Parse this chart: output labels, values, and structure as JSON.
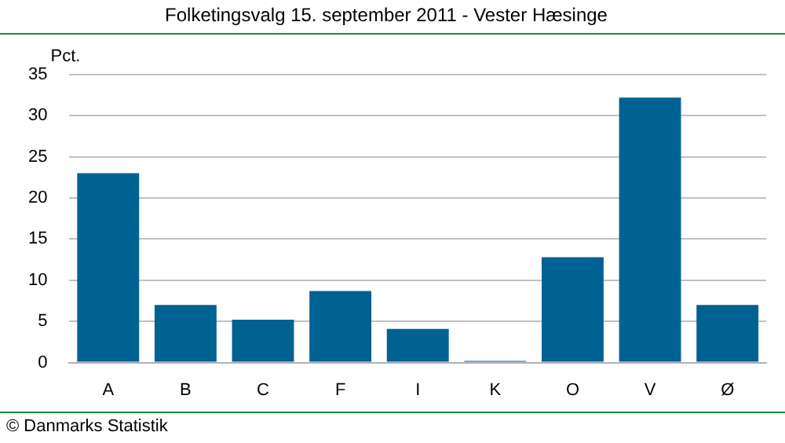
{
  "chart_data": {
    "type": "bar",
    "title": "Folketingsvalg 15. september 2011 - Vester Hæsinge",
    "ylabel": "Pct.",
    "categories": [
      "A",
      "B",
      "C",
      "F",
      "I",
      "K",
      "O",
      "V",
      "Ø"
    ],
    "values": [
      23.0,
      7.0,
      5.2,
      8.7,
      4.1,
      0.2,
      12.8,
      32.2,
      7.0
    ],
    "color": "#006292",
    "ylim": [
      0,
      35
    ],
    "yticks": [
      0,
      5,
      10,
      15,
      20,
      25,
      30,
      35
    ],
    "grid": "y",
    "legend": false,
    "annotations": [
      "© Danmarks Statistik"
    ]
  }
}
